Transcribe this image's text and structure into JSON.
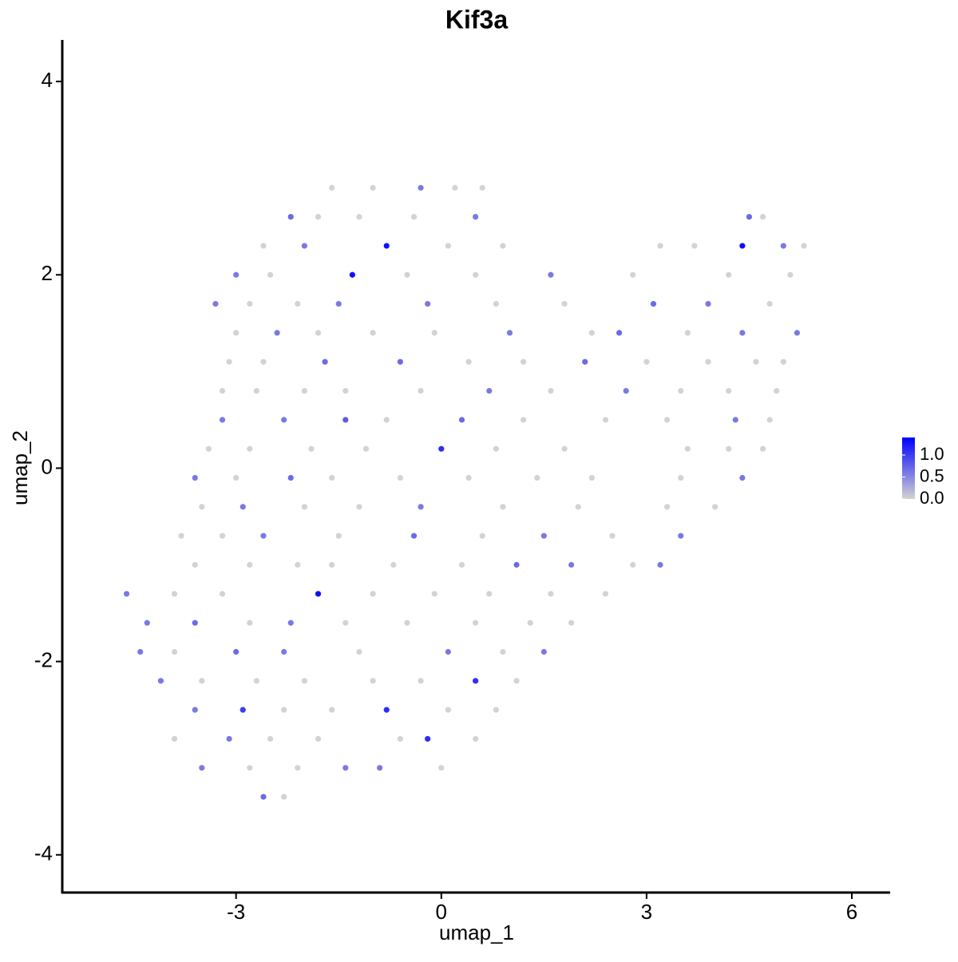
{
  "chart_data": {
    "type": "scatter",
    "title": "Kif3a",
    "x_label": "umap_1",
    "y_label": "umap_2",
    "xlim": [
      -5.54,
      6.56
    ],
    "xticks": [
      -3,
      0,
      3,
      6
    ],
    "ylim": [
      -4.39,
      4.43
    ],
    "yticks": [
      -4,
      -2,
      0,
      2,
      4
    ],
    "low_color": "#d3d3d3",
    "high_color": "#0000ff",
    "colorlim": [
      0,
      1.4
    ],
    "colorticks": [
      {
        "value": 0,
        "label": "0.0"
      },
      {
        "value": 0.5,
        "label": "0.5"
      },
      {
        "value": 1,
        "label": "1.0"
      }
    ],
    "x": [
      -1.6,
      -1.0,
      -0.3,
      0.2,
      0.6,
      -2.2,
      -1.8,
      -1.2,
      -0.4,
      0.5,
      4.5,
      4.7,
      -2.6,
      -2.0,
      -0.8,
      0.1,
      0.9,
      3.2,
      3.7,
      4.4,
      5.0,
      5.3,
      -3.0,
      -2.5,
      -1.3,
      -0.5,
      0.5,
      1.6,
      2.8,
      4.2,
      5.1,
      -3.3,
      -2.8,
      -2.1,
      -1.5,
      -0.2,
      0.8,
      1.8,
      3.1,
      3.9,
      4.8,
      -3.0,
      -2.4,
      -1.8,
      -1.0,
      -0.1,
      1.0,
      2.2,
      2.6,
      3.6,
      4.4,
      5.2,
      -3.1,
      -2.6,
      -1.7,
      -0.6,
      0.4,
      1.2,
      2.1,
      3.0,
      3.9,
      4.6,
      5.0,
      -3.2,
      -2.7,
      -2.0,
      -1.4,
      -0.3,
      0.7,
      1.6,
      2.7,
      3.5,
      4.2,
      4.9,
      -3.2,
      -2.3,
      -1.4,
      -0.8,
      0.3,
      1.2,
      2.4,
      3.3,
      4.3,
      4.8,
      -3.4,
      -2.8,
      -1.9,
      -1.1,
      0.0,
      0.8,
      1.8,
      3.6,
      4.2,
      4.7,
      -3.6,
      -3.0,
      -2.2,
      -1.6,
      -0.6,
      0.4,
      1.4,
      2.2,
      3.5,
      4.4,
      -3.5,
      -2.9,
      -2.0,
      -1.2,
      -0.3,
      0.9,
      2.0,
      3.3,
      4.0,
      -3.8,
      -3.2,
      -2.6,
      -1.5,
      -0.4,
      0.6,
      1.5,
      2.5,
      3.5,
      -3.6,
      -2.8,
      -2.1,
      -1.6,
      -0.7,
      0.3,
      1.1,
      1.9,
      2.8,
      3.2,
      -4.6,
      -3.9,
      -3.2,
      -1.8,
      -1.0,
      -0.1,
      0.7,
      1.6,
      2.4,
      -4.3,
      -3.6,
      -2.8,
      -2.2,
      -1.4,
      -0.5,
      0.5,
      1.3,
      1.9,
      -4.4,
      -3.9,
      -3.0,
      -2.3,
      -1.2,
      0.1,
      0.9,
      1.5,
      -4.1,
      -3.5,
      -2.7,
      -2.0,
      -1.0,
      -0.3,
      0.5,
      1.1,
      -3.6,
      -2.9,
      -2.3,
      -1.6,
      -0.8,
      0.1,
      0.8,
      -3.9,
      -3.1,
      -2.5,
      -1.8,
      -0.6,
      -0.2,
      0.5,
      -3.5,
      -2.8,
      -2.1,
      -1.4,
      -0.9,
      0.0,
      -2.6,
      -2.3
    ],
    "y": [
      2.9,
      2.9,
      2.9,
      2.9,
      2.9,
      2.6,
      2.6,
      2.6,
      2.6,
      2.6,
      2.6,
      2.6,
      2.3,
      2.3,
      2.3,
      2.3,
      2.3,
      2.3,
      2.3,
      2.3,
      2.3,
      2.3,
      2.0,
      2.0,
      2.0,
      2.0,
      2.0,
      2.0,
      2.0,
      2.0,
      2.0,
      1.7,
      1.7,
      1.7,
      1.7,
      1.7,
      1.7,
      1.7,
      1.7,
      1.7,
      1.7,
      1.4,
      1.4,
      1.4,
      1.4,
      1.4,
      1.4,
      1.4,
      1.4,
      1.4,
      1.4,
      1.4,
      1.1,
      1.1,
      1.1,
      1.1,
      1.1,
      1.1,
      1.1,
      1.1,
      1.1,
      1.1,
      1.1,
      0.8,
      0.8,
      0.8,
      0.8,
      0.8,
      0.8,
      0.8,
      0.8,
      0.8,
      0.8,
      0.8,
      0.5,
      0.5,
      0.5,
      0.5,
      0.5,
      0.5,
      0.5,
      0.5,
      0.5,
      0.5,
      0.2,
      0.2,
      0.2,
      0.2,
      0.2,
      0.2,
      0.2,
      0.2,
      0.2,
      0.2,
      -0.1,
      -0.1,
      -0.1,
      -0.1,
      -0.1,
      -0.1,
      -0.1,
      -0.1,
      -0.1,
      -0.1,
      -0.4,
      -0.4,
      -0.4,
      -0.4,
      -0.4,
      -0.4,
      -0.4,
      -0.4,
      -0.4,
      -0.7,
      -0.7,
      -0.7,
      -0.7,
      -0.7,
      -0.7,
      -0.7,
      -0.7,
      -0.7,
      -1.0,
      -1.0,
      -1.0,
      -1.0,
      -1.0,
      -1.0,
      -1.0,
      -1.0,
      -1.0,
      -1.0,
      -1.3,
      -1.3,
      -1.3,
      -1.3,
      -1.3,
      -1.3,
      -1.3,
      -1.3,
      -1.3,
      -1.6,
      -1.6,
      -1.6,
      -1.6,
      -1.6,
      -1.6,
      -1.6,
      -1.6,
      -1.6,
      -1.9,
      -1.9,
      -1.9,
      -1.9,
      -1.9,
      -1.9,
      -1.9,
      -1.9,
      -2.2,
      -2.2,
      -2.2,
      -2.2,
      -2.2,
      -2.2,
      -2.2,
      -2.2,
      -2.5,
      -2.5,
      -2.5,
      -2.5,
      -2.5,
      -2.5,
      -2.5,
      -2.8,
      -2.8,
      -2.8,
      -2.8,
      -2.8,
      -2.8,
      -2.8,
      -3.1,
      -3.1,
      -3.1,
      -3.1,
      -3.1,
      -3.1,
      -3.4,
      -3.4
    ],
    "values": [
      0,
      0,
      0.6,
      0,
      0,
      0.7,
      0,
      0,
      0,
      0.6,
      0.7,
      0,
      0,
      0.6,
      1.3,
      0,
      0,
      0,
      0,
      1.3,
      0.6,
      0,
      0.6,
      0,
      1.3,
      0,
      0,
      0.6,
      0,
      0,
      0,
      0.6,
      0,
      0,
      0.6,
      0.6,
      0,
      0,
      0.7,
      0.6,
      0,
      0,
      0.6,
      0,
      0,
      0,
      0.6,
      0,
      0.7,
      0,
      0.6,
      0.6,
      0,
      0,
      0.7,
      0.7,
      0,
      0,
      0.7,
      0,
      0,
      0,
      0,
      0,
      0,
      0,
      0,
      0,
      0.6,
      0,
      0.6,
      0,
      0,
      0,
      0.6,
      0.6,
      0.8,
      0,
      0.7,
      0,
      0,
      0,
      0.6,
      0,
      0,
      0,
      0,
      0,
      1.1,
      0,
      0,
      0,
      0,
      0,
      0.6,
      0,
      0.7,
      0,
      0,
      0,
      0,
      0,
      0,
      0.6,
      0,
      0.6,
      0,
      0,
      0.6,
      0,
      0,
      0,
      0,
      0,
      0,
      0.6,
      0,
      0.7,
      0,
      0.6,
      0,
      0.6,
      0,
      0,
      0,
      0,
      0,
      0,
      0.7,
      0.6,
      0,
      0.6,
      0.6,
      0,
      0,
      1.3,
      0,
      0,
      0,
      0,
      0,
      0.6,
      0.7,
      0,
      0.6,
      0,
      0,
      0,
      0,
      0,
      0.6,
      0,
      0.7,
      0.6,
      0,
      0.6,
      0,
      0.6,
      0.6,
      0,
      0,
      0,
      0,
      0,
      1.1,
      0,
      0.6,
      1.0,
      0,
      0,
      1.1,
      0,
      0,
      0,
      0.6,
      0,
      0,
      0,
      1.1,
      0,
      0.6,
      0,
      0,
      0.6,
      0.6,
      0,
      0.7,
      0
    ]
  }
}
